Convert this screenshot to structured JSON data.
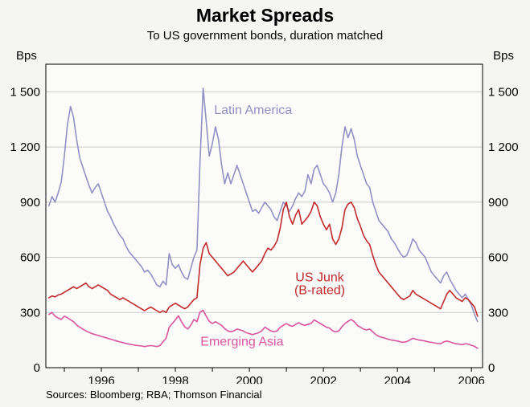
{
  "header": {
    "title": "Market Spreads",
    "subtitle": "To US government bonds, duration matched"
  },
  "footer": {
    "sources": "Sources: Bloomberg; RBA; Thomson Financial"
  },
  "axes": {
    "y_unit_left": "Bps",
    "y_unit_right": "Bps",
    "y_ticks": [
      0,
      300,
      600,
      900,
      1200,
      1500
    ],
    "y_tick_labels": [
      "0",
      "300",
      "600",
      "900",
      "1 200",
      "1 500"
    ],
    "x_min": 1994.5,
    "x_max": 2006.3,
    "x_tick_years": [
      1996,
      1998,
      2000,
      2002,
      2004,
      2006
    ],
    "x_minor_years": [
      1995,
      1996,
      1997,
      1998,
      1999,
      2000,
      2001,
      2002,
      2003,
      2004,
      2005,
      2006
    ]
  },
  "chart_data": {
    "type": "line",
    "title": "Market Spreads",
    "subtitle": "To US government bonds, duration matched",
    "xlabel": "",
    "ylabel": "Bps",
    "ylim": [
      0,
      1650
    ],
    "xlim": [
      1994.5,
      2006.3
    ],
    "grid": "horizontal",
    "legend_position": "inline-labels",
    "x_start": 1994.5833,
    "x_step": 0.08333,
    "colors": {
      "latin_america": "#9191c5",
      "us_junk": "#c22b2b",
      "emerging_asia": "#d9569e",
      "gridline": "#c9c9c9",
      "axis": "#000000",
      "plot_bg": "#fbfbf9"
    },
    "series": [
      {
        "name": "Latin America",
        "label_lines": [
          "Latin America"
        ],
        "color": "#9191c5",
        "label_pos": {
          "x": 2000.1,
          "y": 1380
        },
        "values": [
          880,
          930,
          900,
          950,
          1010,
          1150,
          1320,
          1420,
          1360,
          1240,
          1140,
          1090,
          1040,
          990,
          950,
          980,
          1000,
          950,
          900,
          850,
          820,
          780,
          750,
          720,
          700,
          660,
          630,
          610,
          590,
          570,
          550,
          520,
          530,
          510,
          480,
          450,
          440,
          470,
          450,
          620,
          560,
          540,
          560,
          520,
          490,
          480,
          540,
          600,
          640,
          1120,
          1520,
          1340,
          1150,
          1220,
          1310,
          1240,
          1100,
          1000,
          1060,
          1000,
          1050,
          1100,
          1050,
          1000,
          950,
          900,
          850,
          860,
          840,
          870,
          900,
          880,
          860,
          820,
          800,
          850,
          900,
          880,
          850,
          880,
          920,
          950,
          930,
          960,
          1050,
          1000,
          1080,
          1100,
          1050,
          1000,
          980,
          950,
          900,
          950,
          1050,
          1200,
          1310,
          1250,
          1300,
          1240,
          1150,
          1100,
          1050,
          1000,
          980,
          900,
          850,
          800,
          780,
          760,
          740,
          700,
          680,
          650,
          620,
          600,
          610,
          650,
          700,
          680,
          640,
          620,
          600,
          560,
          520,
          500,
          480,
          460,
          500,
          520,
          480,
          450,
          420,
          400,
          380,
          400,
          370,
          340,
          290,
          250
        ]
      },
      {
        "name": "US Junk (B-rated)",
        "label_lines": [
          "US Junk",
          "(B-rated)"
        ],
        "color": "#c22b2b",
        "label_pos": {
          "x": 2001.9,
          "y": 470
        },
        "values": [
          380,
          390,
          385,
          395,
          400,
          410,
          420,
          430,
          440,
          430,
          440,
          450,
          460,
          440,
          430,
          440,
          450,
          440,
          430,
          420,
          400,
          390,
          380,
          370,
          380,
          370,
          360,
          350,
          340,
          330,
          320,
          310,
          320,
          330,
          320,
          310,
          300,
          310,
          300,
          330,
          340,
          350,
          340,
          330,
          320,
          330,
          350,
          370,
          380,
          560,
          650,
          680,
          620,
          600,
          580,
          560,
          540,
          520,
          500,
          510,
          520,
          540,
          560,
          580,
          560,
          540,
          520,
          540,
          560,
          580,
          620,
          650,
          640,
          660,
          690,
          760,
          860,
          900,
          820,
          780,
          830,
          860,
          780,
          800,
          820,
          850,
          900,
          880,
          820,
          780,
          750,
          780,
          700,
          670,
          700,
          760,
          860,
          890,
          900,
          870,
          810,
          770,
          720,
          690,
          670,
          610,
          560,
          520,
          500,
          480,
          460,
          440,
          420,
          400,
          380,
          370,
          380,
          390,
          420,
          400,
          390,
          380,
          370,
          360,
          350,
          340,
          330,
          320,
          360,
          400,
          420,
          400,
          380,
          370,
          360,
          380,
          370,
          350,
          330,
          280
        ]
      },
      {
        "name": "Emerging Asia",
        "label_lines": [
          "Emerging Asia"
        ],
        "color": "#d9569e",
        "label_pos": {
          "x": 1999.8,
          "y": 120
        },
        "values": [
          290,
          300,
          280,
          270,
          262,
          280,
          272,
          260,
          250,
          232,
          220,
          210,
          200,
          192,
          185,
          180,
          175,
          170,
          165,
          160,
          155,
          150,
          145,
          140,
          136,
          132,
          128,
          125,
          122,
          120,
          118,
          115,
          118,
          120,
          118,
          115,
          120,
          140,
          160,
          220,
          240,
          260,
          282,
          250,
          222,
          210,
          230,
          262,
          250,
          302,
          312,
          280,
          252,
          240,
          250,
          240,
          230,
          212,
          200,
          195,
          200,
          210,
          205,
          200,
          190,
          185,
          180,
          185,
          190,
          200,
          220,
          210,
          200,
          195,
          200,
          220,
          230,
          240,
          230,
          225,
          235,
          245,
          235,
          230,
          235,
          240,
          260,
          250,
          240,
          230,
          220,
          215,
          200,
          195,
          200,
          222,
          240,
          252,
          262,
          250,
          230,
          220,
          210,
          205,
          210,
          195,
          180,
          170,
          165,
          160,
          155,
          150,
          148,
          145,
          140,
          138,
          142,
          150,
          160,
          155,
          150,
          148,
          145,
          140,
          138,
          135,
          132,
          130,
          140,
          145,
          140,
          135,
          130,
          128,
          125,
          130,
          128,
          122,
          116,
          105
        ]
      }
    ]
  }
}
